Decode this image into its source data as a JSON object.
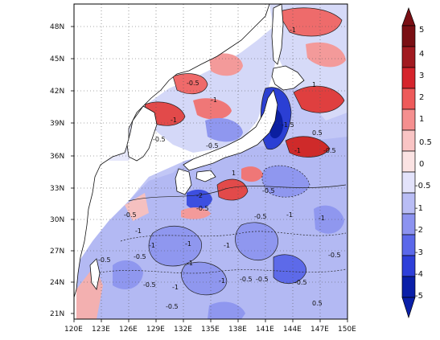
{
  "map": {
    "x_ticks": [
      "120E",
      "123E",
      "126E",
      "129E",
      "132E",
      "135E",
      "138E",
      "141E",
      "144E",
      "147E",
      "150E"
    ],
    "y_ticks": [
      "48N",
      "45N",
      "42N",
      "39N",
      "36N",
      "33N",
      "30N",
      "27N",
      "24N",
      "21N"
    ],
    "contour_labels": [
      "-0.5",
      "-1",
      "-1",
      "0.5",
      "-0.5",
      "-0.5",
      "-1",
      "1",
      "-0.5",
      "-2",
      "-1.5",
      "-1",
      "-0.5",
      "0.5",
      "-0.5",
      "-1",
      "-1",
      "-0.5",
      "1",
      "-0.5",
      "-0.5",
      "-1",
      "-1",
      "-0.5",
      "-0.5",
      "-1",
      "-0.5",
      "-1",
      "-0.5",
      "-0.5",
      "-0.5",
      "-1",
      "-1",
      "-1",
      "-0.5"
    ]
  },
  "colorbar": {
    "labels": [
      "5",
      "4",
      "3",
      "2",
      "1",
      "0.5",
      "0",
      "-0.5",
      "-1",
      "-2",
      "-3",
      "-4",
      "-5"
    ],
    "colors": [
      "#7a0f14",
      "#a11a20",
      "#d5242c",
      "#ee5a5a",
      "#f58f8f",
      "#f9c4c4",
      "#fbe3e3",
      "#e3e3fb",
      "#b9bdf5",
      "#8c93f0",
      "#5b68ea",
      "#2e3fd9",
      "#0a1fa8"
    ]
  }
}
